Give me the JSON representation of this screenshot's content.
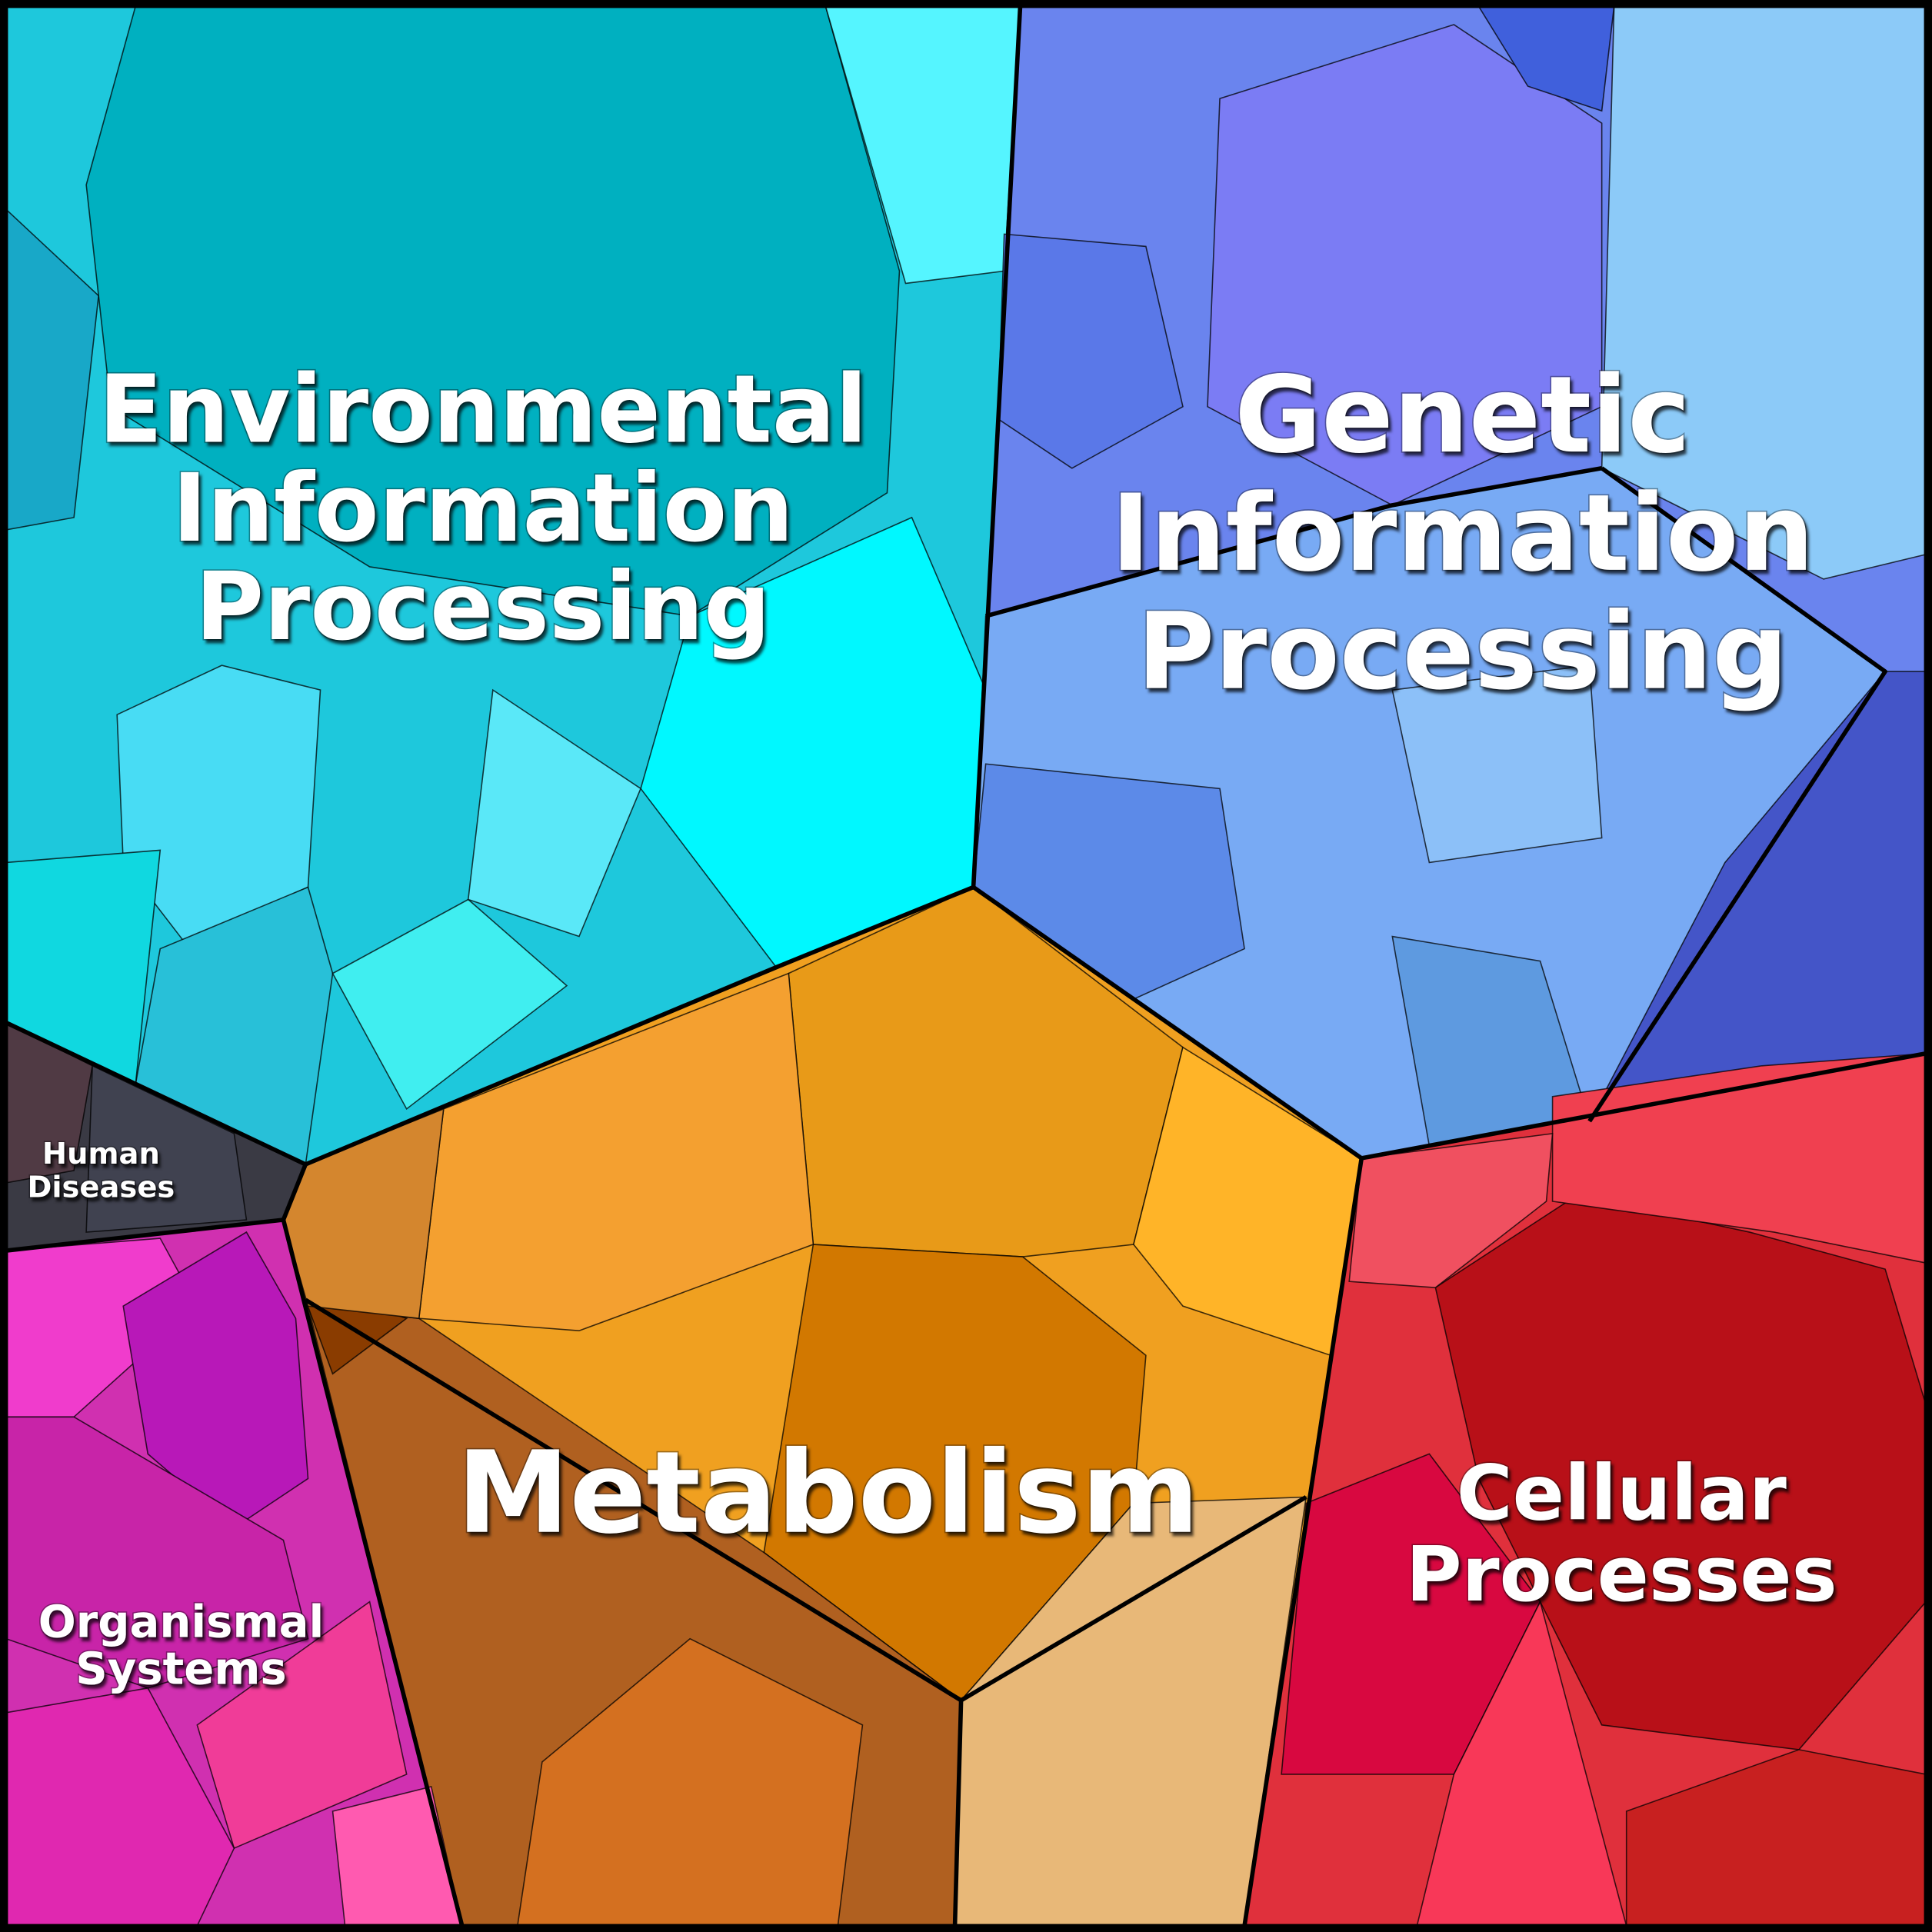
{
  "regions": [
    {
      "label": [
        "Environmental",
        "Information",
        "Processing"
      ]
    },
    {
      "label": [
        "Genetic",
        "Information",
        "Processing"
      ]
    },
    {
      "label": [
        "Metabolism"
      ]
    },
    {
      "label": [
        "Cellular",
        "Processes"
      ]
    },
    {
      "label": [
        "Human",
        "Diseases"
      ]
    },
    {
      "label": [
        "Organismal",
        "Systems"
      ]
    }
  ]
}
